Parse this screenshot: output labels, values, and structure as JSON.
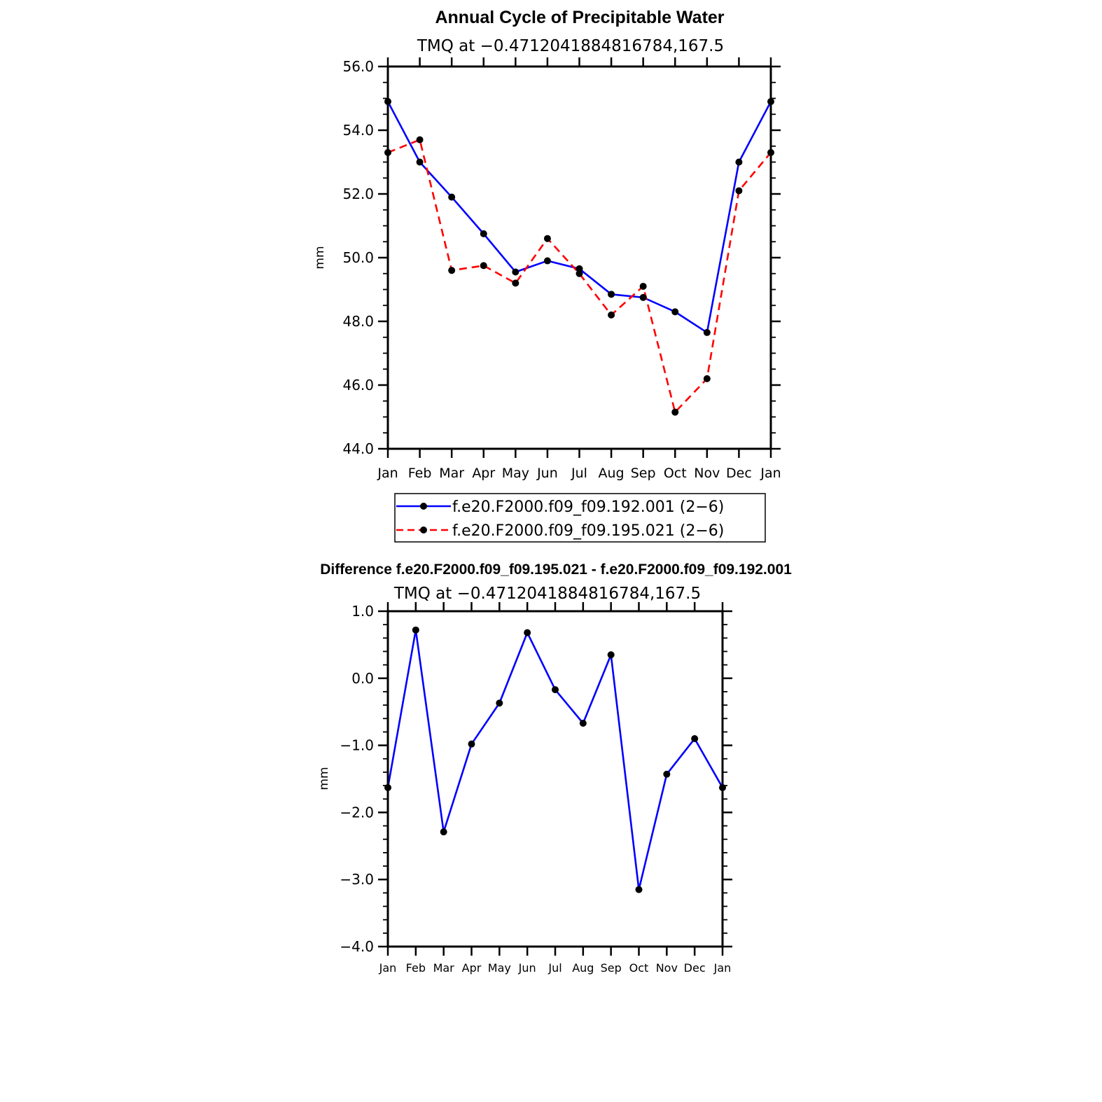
{
  "chart_data": [
    {
      "type": "line",
      "title": "Annual Cycle of Precipitable Water",
      "subtitle": "TMQ at −0.4712041884816784,167.5",
      "xlabel": "",
      "ylabel": "mm",
      "categories": [
        "Jan",
        "Feb",
        "Mar",
        "Apr",
        "May",
        "Jun",
        "Jul",
        "Aug",
        "Sep",
        "Oct",
        "Nov",
        "Dec",
        "Jan"
      ],
      "ylim": [
        44.0,
        56.0
      ],
      "yticks": [
        "44.0",
        "46.0",
        "48.0",
        "50.0",
        "52.0",
        "54.0",
        "56.0"
      ],
      "series": [
        {
          "name": "f.e20.F2000.f09_f09.192.001 (2−6)",
          "color": "#0000ff",
          "dash": "solid",
          "values": [
            54.9,
            53.0,
            51.9,
            50.75,
            49.55,
            49.9,
            49.65,
            48.85,
            48.75,
            48.3,
            47.65,
            53.0,
            54.9
          ]
        },
        {
          "name": "f.e20.F2000.f09_f09.195.021 (2−6)",
          "color": "#ff0000",
          "dash": "dashed",
          "values": [
            53.3,
            53.7,
            49.6,
            49.75,
            49.2,
            50.6,
            49.5,
            48.2,
            49.1,
            45.15,
            46.2,
            52.1,
            53.3
          ]
        }
      ],
      "legend": "bottom"
    },
    {
      "type": "line",
      "title": "Difference f.e20.F2000.f09_f09.195.021 - f.e20.F2000.f09_f09.192.001",
      "subtitle": "TMQ at −0.4712041884816784,167.5",
      "xlabel": "",
      "ylabel": "mm",
      "categories": [
        "Jan",
        "Feb",
        "Mar",
        "Apr",
        "May",
        "Jun",
        "Jul",
        "Aug",
        "Sep",
        "Oct",
        "Nov",
        "Dec",
        "Jan"
      ],
      "ylim": [
        -4.0,
        1.0
      ],
      "yticks": [
        "−4.0",
        "−3.0",
        "−2.0",
        "−1.0",
        "0.0",
        "1.0"
      ],
      "series": [
        {
          "name": "Difference",
          "color": "#0000ff",
          "dash": "solid",
          "values": [
            -1.63,
            0.72,
            -2.29,
            -0.98,
            -0.37,
            0.68,
            -0.17,
            -0.67,
            0.35,
            -3.15,
            -1.43,
            -0.9,
            -1.63
          ]
        }
      ]
    }
  ]
}
